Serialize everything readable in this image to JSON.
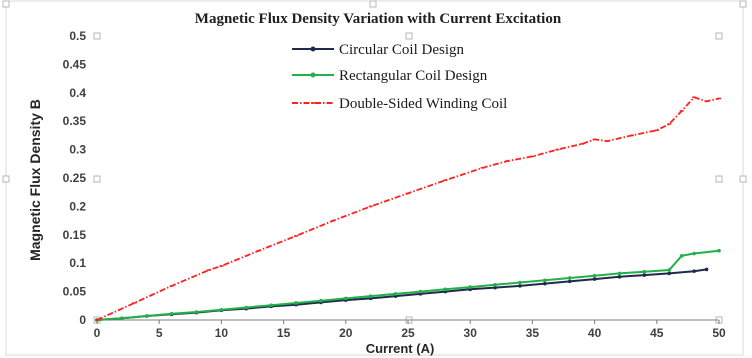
{
  "chart_data": {
    "type": "line",
    "title": "Magnetic Flux Density Variation with Current Excitation",
    "xlabel": "Current (A)",
    "ylabel": "Magnetic Flux Density B",
    "xlim": [
      0,
      50
    ],
    "ylim": [
      0,
      0.5
    ],
    "xticks": [
      0,
      5,
      10,
      15,
      20,
      25,
      30,
      35,
      40,
      45,
      50
    ],
    "yticks": [
      0,
      0.05,
      0.1,
      0.15,
      0.2,
      0.25,
      0.3,
      0.35,
      0.4,
      0.45,
      0.5
    ],
    "x_tick_labels": [
      "0",
      "5",
      "10",
      "15",
      "20",
      "25",
      "30",
      "35",
      "40",
      "45",
      "50"
    ],
    "y_tick_labels": [
      "0",
      "0.05",
      "0.1",
      "0.15",
      "0.2",
      "0.25",
      "0.3",
      "0.35",
      "0.4",
      "0.45",
      "0.5"
    ],
    "grid": false,
    "legend_position": "top-center",
    "series": [
      {
        "name": "Circular Coil Design",
        "color": "#1f2a4d",
        "x": [
          0,
          2,
          4,
          6,
          8,
          10,
          12,
          14,
          16,
          18,
          20,
          22,
          24,
          26,
          28,
          30,
          32,
          34,
          36,
          38,
          40,
          42,
          44,
          46,
          48,
          49
        ],
        "y": [
          0,
          0.003,
          0.007,
          0.01,
          0.013,
          0.017,
          0.02,
          0.024,
          0.027,
          0.031,
          0.035,
          0.038,
          0.042,
          0.046,
          0.05,
          0.054,
          0.057,
          0.06,
          0.064,
          0.068,
          0.072,
          0.076,
          0.079,
          0.082,
          0.086,
          0.089
        ]
      },
      {
        "name": "Rectangular Coil Design",
        "color": "#22b04a",
        "x": [
          0,
          2,
          4,
          6,
          8,
          10,
          12,
          14,
          16,
          18,
          20,
          22,
          24,
          26,
          28,
          30,
          32,
          34,
          36,
          38,
          40,
          42,
          44,
          46,
          47,
          48,
          50
        ],
        "y": [
          0,
          0.003,
          0.007,
          0.011,
          0.014,
          0.018,
          0.022,
          0.026,
          0.03,
          0.034,
          0.038,
          0.042,
          0.046,
          0.05,
          0.054,
          0.058,
          0.062,
          0.066,
          0.07,
          0.074,
          0.078,
          0.082,
          0.085,
          0.088,
          0.113,
          0.117,
          0.122
        ]
      },
      {
        "name": "Double-Sided Winding Coil",
        "color": "#ff2020",
        "x": [
          0,
          3,
          6,
          9,
          10,
          13,
          16,
          19,
          22,
          25,
          28,
          31,
          33,
          35,
          37,
          39,
          40,
          41,
          43,
          45,
          46,
          47,
          48,
          49,
          50
        ],
        "y": [
          0,
          0.03,
          0.06,
          0.088,
          0.095,
          0.122,
          0.148,
          0.175,
          0.2,
          0.223,
          0.246,
          0.268,
          0.28,
          0.288,
          0.3,
          0.31,
          0.318,
          0.315,
          0.325,
          0.334,
          0.345,
          0.368,
          0.392,
          0.385,
          0.39
        ]
      }
    ]
  }
}
